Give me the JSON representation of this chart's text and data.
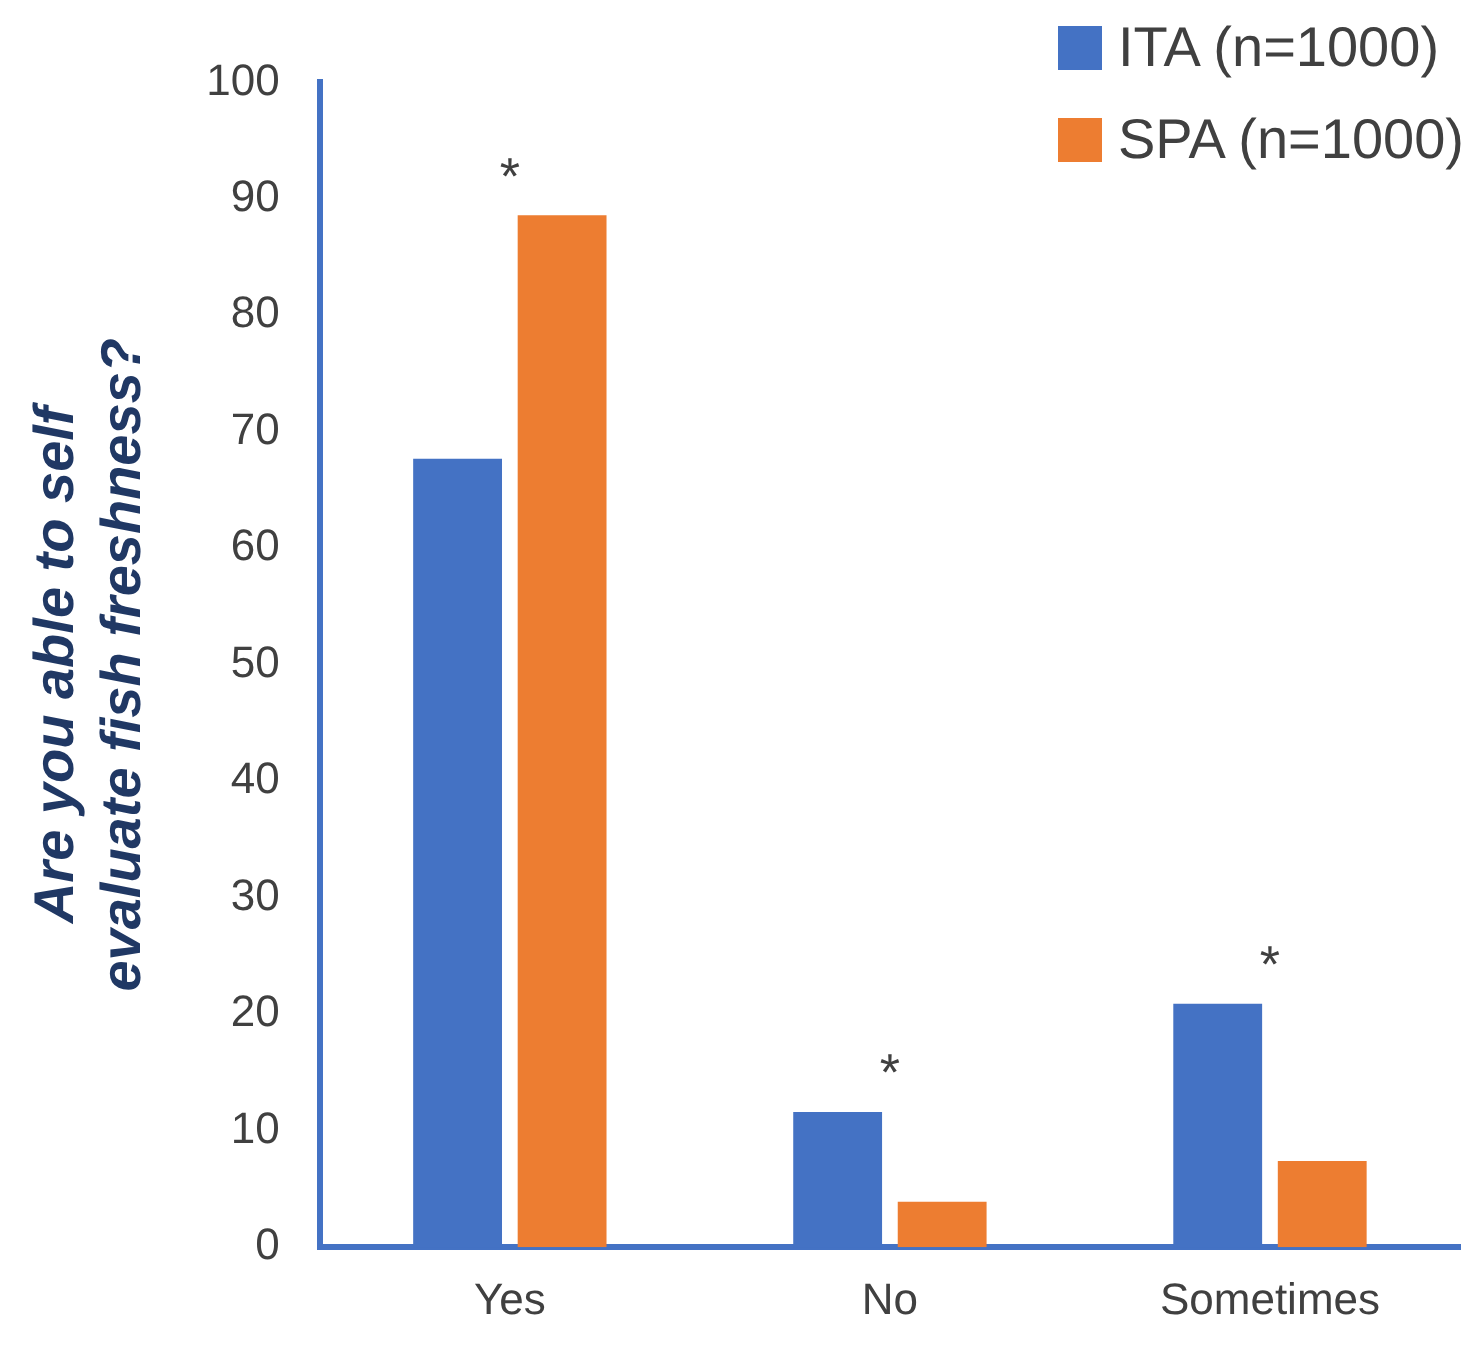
{
  "chart_data": {
    "type": "bar",
    "ylabel": "Are you able to self evaluate fish freshness?",
    "categories": [
      "Yes",
      "No",
      "Sometimes"
    ],
    "series": [
      {
        "name": "ITA (n=1000)",
        "color": "#4472c4",
        "values": [
          67.7,
          11.6,
          20.9
        ]
      },
      {
        "name": "SPA (n=1000)",
        "color": "#ed7d31",
        "values": [
          88.6,
          3.9,
          7.4
        ]
      }
    ],
    "ylim": [
      0,
      100
    ],
    "yticks": [
      0,
      10,
      20,
      30,
      40,
      50,
      60,
      70,
      80,
      90,
      100
    ],
    "annotations": [
      "*",
      "*",
      "*"
    ],
    "grid": false,
    "legend": "top right"
  }
}
